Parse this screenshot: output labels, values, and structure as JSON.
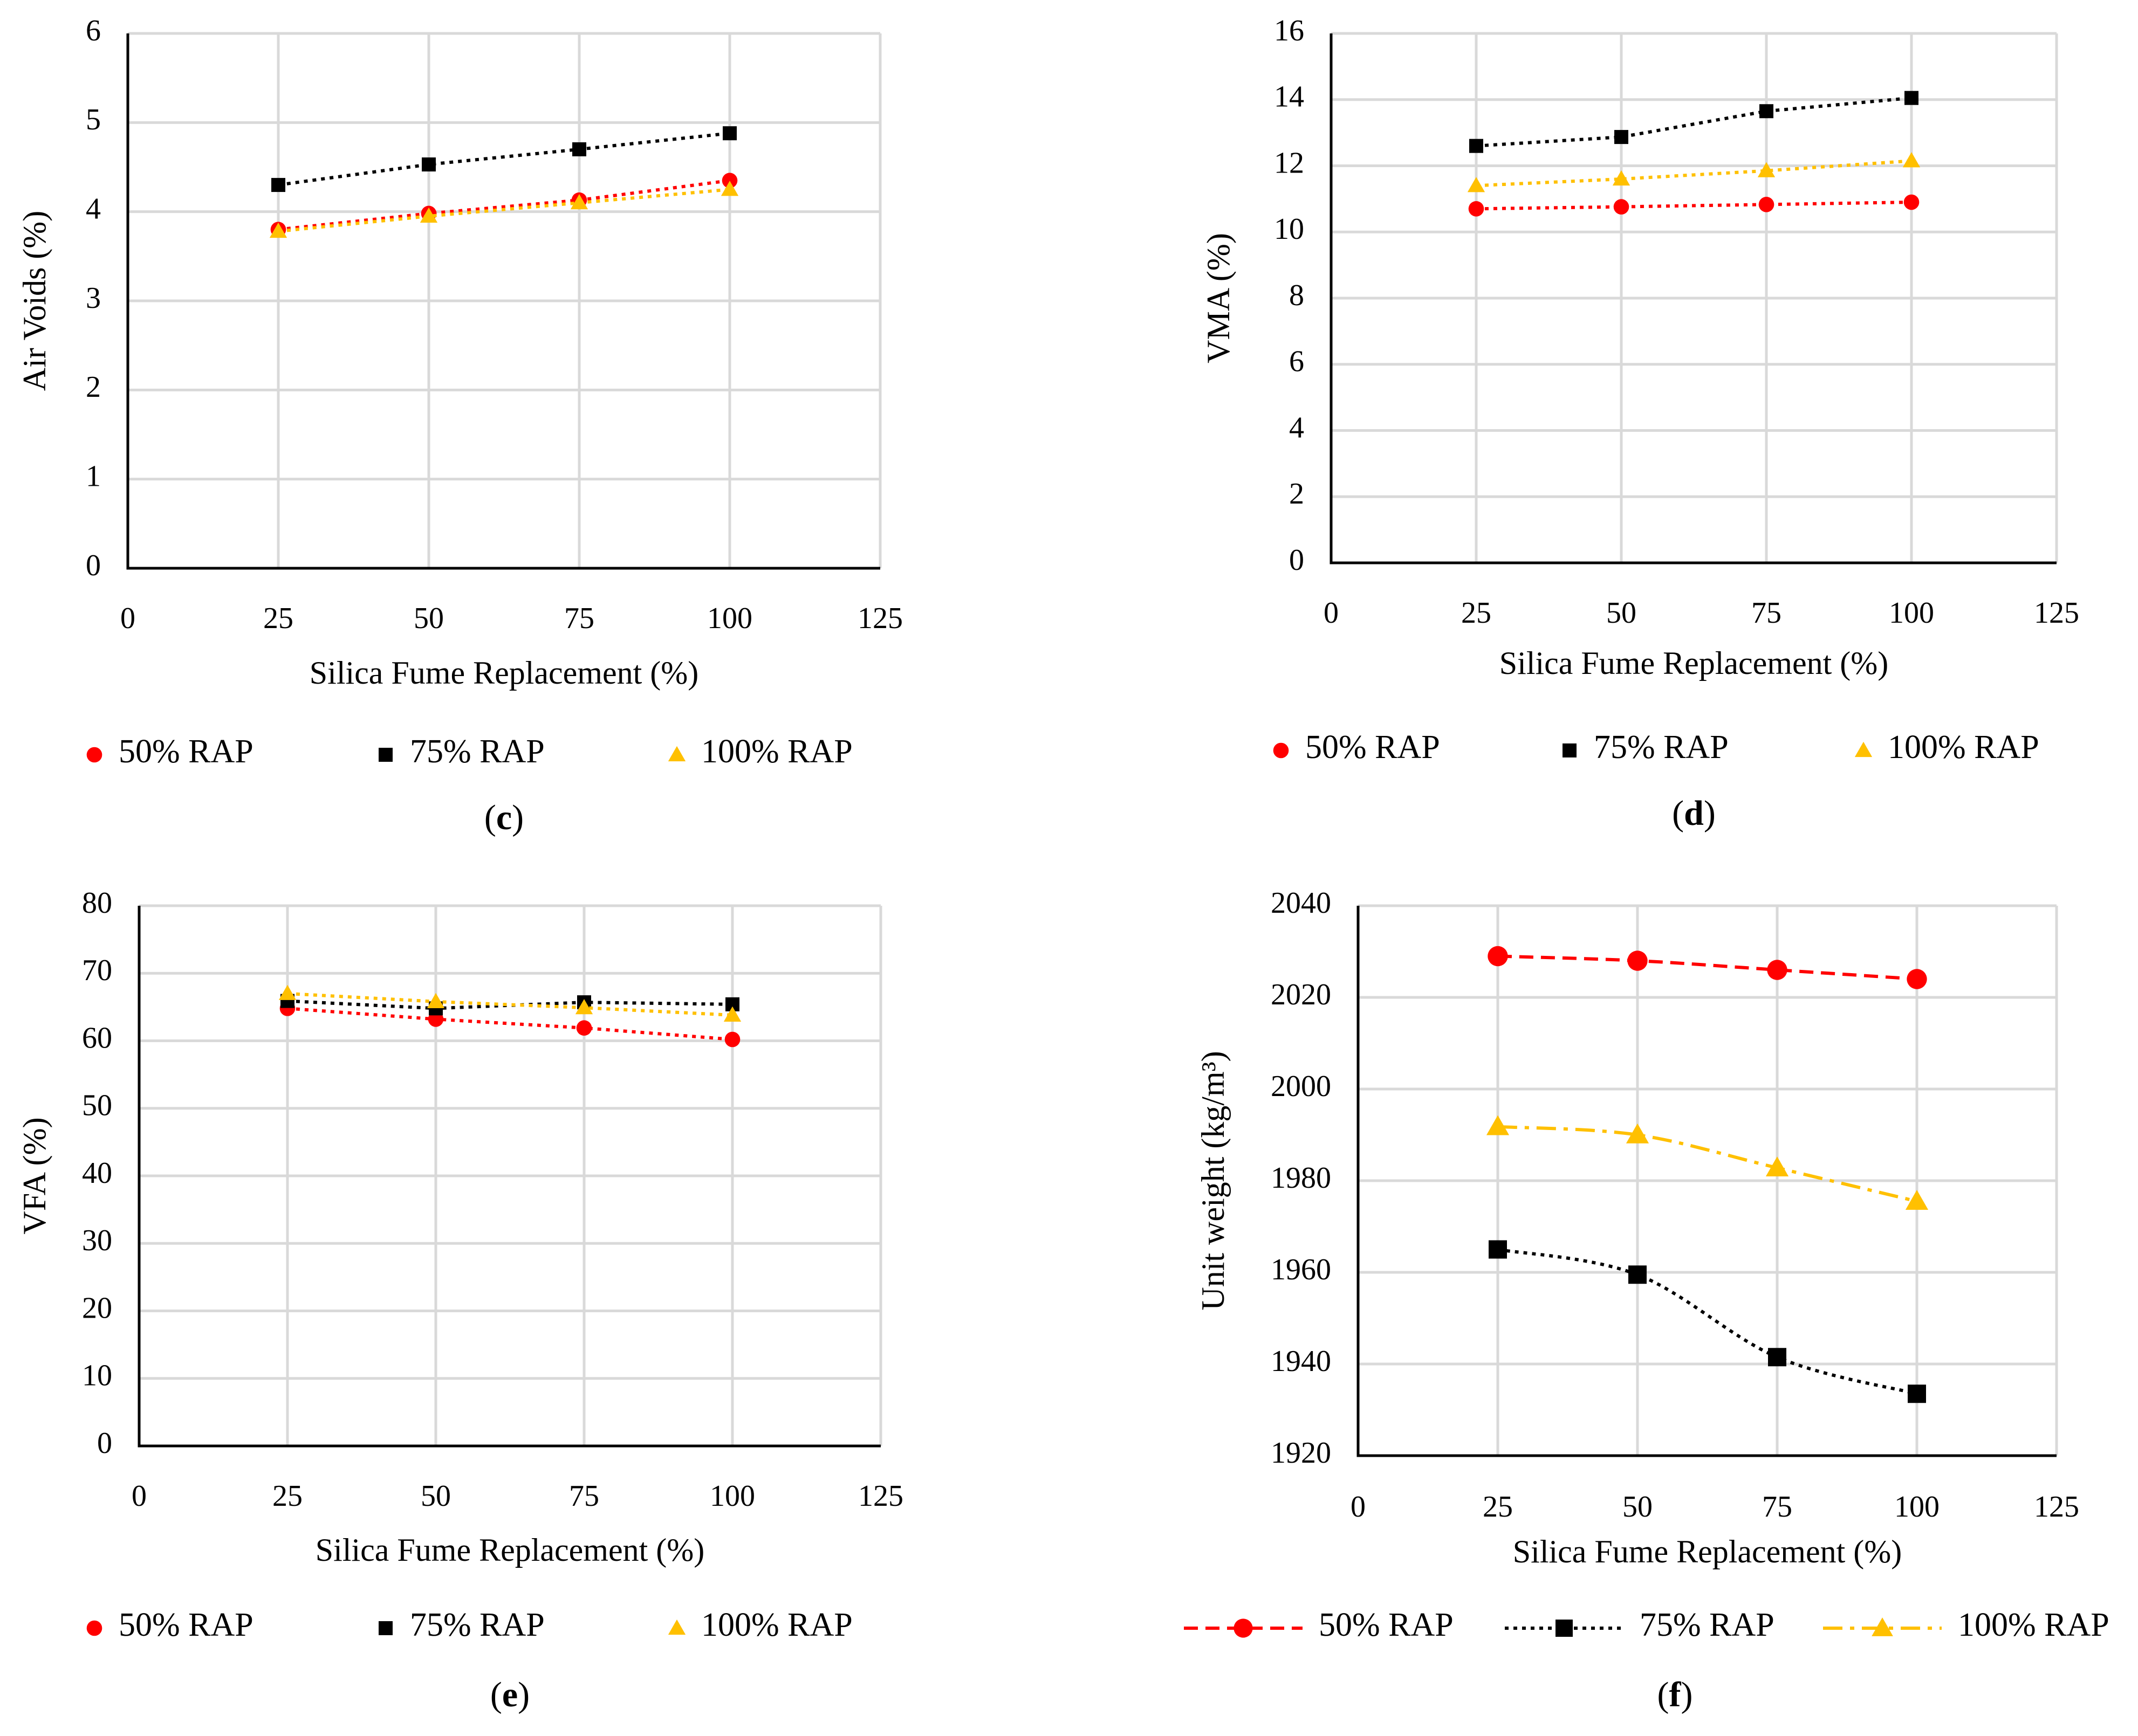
{
  "chart_data": [
    {
      "id": "c",
      "type": "line",
      "caption_letter": "c",
      "xlabel": "Silica Fume Replacement (%)",
      "ylabel": "Air Voids (%)",
      "xlim": [
        0,
        125
      ],
      "xticks": [
        0,
        25,
        50,
        75,
        100,
        125
      ],
      "ylim": [
        0,
        6
      ],
      "yticks": [
        0,
        1,
        2,
        3,
        4,
        5,
        6
      ],
      "x": [
        25,
        50,
        75,
        100
      ],
      "legend_style": "markers",
      "series": [
        {
          "name": "50% RAP",
          "color": "#ff0000",
          "marker": "circle",
          "dash": "dotted",
          "smooth": false,
          "values": [
            3.8,
            3.98,
            4.13,
            4.35
          ]
        },
        {
          "name": "75% RAP",
          "color": "#000000",
          "marker": "square",
          "dash": "dotted",
          "smooth": false,
          "values": [
            4.3,
            4.53,
            4.7,
            4.88
          ]
        },
        {
          "name": "100% RAP",
          "color": "#ffc000",
          "marker": "triangle",
          "dash": "dotted",
          "smooth": false,
          "values": [
            3.78,
            3.95,
            4.1,
            4.25
          ]
        }
      ]
    },
    {
      "id": "d",
      "type": "line",
      "caption_letter": "d",
      "xlabel": "Silica Fume Replacement (%)",
      "ylabel": "VMA  (%)",
      "xlim": [
        0,
        125
      ],
      "xticks": [
        0,
        25,
        50,
        75,
        100,
        125
      ],
      "ylim": [
        0,
        16
      ],
      "yticks": [
        0,
        2,
        4,
        6,
        8,
        10,
        12,
        14,
        16
      ],
      "x": [
        25,
        50,
        75,
        100
      ],
      "legend_style": "markers",
      "series": [
        {
          "name": "50% RAP",
          "color": "#ff0000",
          "marker": "circle",
          "dash": "dotted",
          "smooth": false,
          "values": [
            10.7,
            10.76,
            10.83,
            10.9
          ]
        },
        {
          "name": "75% RAP",
          "color": "#000000",
          "marker": "square",
          "dash": "dotted",
          "smooth": false,
          "values": [
            12.6,
            12.87,
            13.65,
            14.05
          ]
        },
        {
          "name": "100% RAP",
          "color": "#ffc000",
          "marker": "triangle",
          "dash": "dotted",
          "smooth": false,
          "values": [
            11.4,
            11.6,
            11.85,
            12.15
          ]
        }
      ]
    },
    {
      "id": "e",
      "type": "line",
      "caption_letter": "e",
      "xlabel": "Silica Fume Replacement (%)",
      "ylabel": "VFA  (%)",
      "xlim": [
        0,
        125
      ],
      "xticks": [
        0,
        25,
        50,
        75,
        100,
        125
      ],
      "ylim": [
        0,
        80
      ],
      "yticks": [
        0,
        10,
        20,
        30,
        40,
        50,
        60,
        70,
        80
      ],
      "x": [
        25,
        50,
        75,
        100
      ],
      "legend_style": "markers",
      "series": [
        {
          "name": "50% RAP",
          "color": "#ff0000",
          "marker": "circle",
          "dash": "dotted",
          "smooth": false,
          "values": [
            64.8,
            63.2,
            61.9,
            60.2
          ]
        },
        {
          "name": "75% RAP",
          "color": "#000000",
          "marker": "square",
          "dash": "dotted",
          "smooth": false,
          "values": [
            65.9,
            64.8,
            65.7,
            65.4
          ]
        },
        {
          "name": "100% RAP",
          "color": "#ffc000",
          "marker": "triangle",
          "dash": "dotted",
          "smooth": false,
          "values": [
            67.0,
            65.8,
            64.9,
            63.8
          ]
        }
      ]
    },
    {
      "id": "f",
      "type": "line",
      "caption_letter": "f",
      "xlabel": "Silica Fume Replacement (%)",
      "ylabel": "Unit weight (kg/m³)",
      "xlim": [
        0,
        125
      ],
      "xticks": [
        0,
        25,
        50,
        75,
        100,
        125
      ],
      "ylim": [
        1920,
        2040
      ],
      "yticks": [
        1920,
        1940,
        1960,
        1980,
        2000,
        2020,
        2040
      ],
      "x": [
        25,
        50,
        75,
        100
      ],
      "legend_style": "lines",
      "series": [
        {
          "name": "50% RAP",
          "color": "#ff0000",
          "marker": "circle",
          "dash": "dashed",
          "smooth": true,
          "values": [
            2029,
            2028,
            2026,
            2024
          ]
        },
        {
          "name": "75% RAP",
          "color": "#000000",
          "marker": "square",
          "dash": "dotted",
          "smooth": true,
          "values": [
            1965,
            1959.5,
            1941.5,
            1933.5
          ]
        },
        {
          "name": "100% RAP",
          "color": "#ffc000",
          "marker": "triangle",
          "dash": "dashdot",
          "smooth": true,
          "values": [
            1991.8,
            1990,
            1982.8,
            1975.5
          ]
        }
      ]
    }
  ],
  "captions": {
    "c": {
      "open": "(",
      "letter": "c",
      "close": ")"
    },
    "d": {
      "open": "(",
      "letter": "d",
      "close": ")"
    },
    "e": {
      "open": "(",
      "letter": "e",
      "close": ")"
    },
    "f": {
      "open": "(",
      "letter": "f",
      "close": ")"
    }
  }
}
